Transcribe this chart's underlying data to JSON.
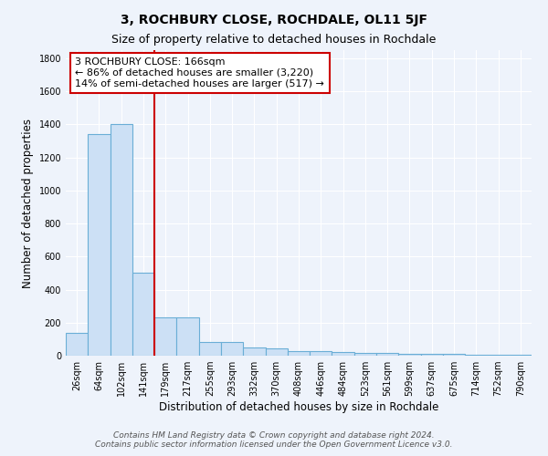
{
  "title": "3, ROCHBURY CLOSE, ROCHDALE, OL11 5JF",
  "subtitle": "Size of property relative to detached houses in Rochdale",
  "xlabel": "Distribution of detached houses by size in Rochdale",
  "ylabel": "Number of detached properties",
  "bin_labels": [
    "26sqm",
    "64sqm",
    "102sqm",
    "141sqm",
    "179sqm",
    "217sqm",
    "255sqm",
    "293sqm",
    "332sqm",
    "370sqm",
    "408sqm",
    "446sqm",
    "484sqm",
    "523sqm",
    "561sqm",
    "599sqm",
    "637sqm",
    "675sqm",
    "714sqm",
    "752sqm",
    "790sqm"
  ],
  "bar_heights": [
    140,
    1340,
    1400,
    500,
    230,
    230,
    85,
    85,
    50,
    45,
    30,
    25,
    20,
    15,
    15,
    13,
    13,
    10,
    5,
    5,
    5
  ],
  "bar_color": "#cce0f5",
  "bar_edge_color": "#6aaed6",
  "background_color": "#eef3fb",
  "grid_color": "#ffffff",
  "annotation_line1": "3 ROCHBURY CLOSE: 166sqm",
  "annotation_line2": "← 86% of detached houses are smaller (3,220)",
  "annotation_line3": "14% of semi-detached houses are larger (517) →",
  "annotation_box_color": "#ffffff",
  "annotation_box_edge_color": "#cc0000",
  "red_line_x": 3.5,
  "ylim": [
    0,
    1850
  ],
  "yticks": [
    0,
    200,
    400,
    600,
    800,
    1000,
    1200,
    1400,
    1600,
    1800
  ],
  "footer": "Contains HM Land Registry data © Crown copyright and database right 2024.\nContains public sector information licensed under the Open Government Licence v3.0.",
  "title_fontsize": 10,
  "subtitle_fontsize": 9,
  "xlabel_fontsize": 8.5,
  "ylabel_fontsize": 8.5,
  "tick_fontsize": 7,
  "annotation_fontsize": 8,
  "footer_fontsize": 6.5
}
